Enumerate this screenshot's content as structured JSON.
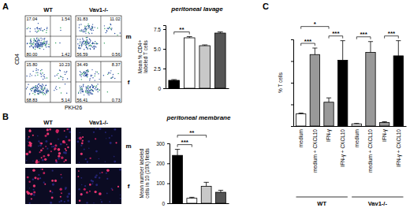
{
  "chart_data": [
    {
      "type": "quadrant",
      "panel": "A",
      "title": "peritoneal lavage",
      "columns": [
        "WT",
        "Vav1-/-"
      ],
      "rows": [
        "m",
        "f"
      ],
      "x_label": "PKH26",
      "y_label": "CD4",
      "plots": [
        {
          "values": [
            17.04,
            1.54,
            80,
            1.42
          ],
          "value_labels": [
            "17.04",
            "1.54",
            "80.00",
            "1.42"
          ]
        },
        {
          "values": [
            31.83,
            11.02,
            56.59,
            0.56
          ],
          "value_labels": [
            "31.83",
            "11.02",
            "56.59",
            "0.56"
          ]
        },
        {
          "values": [
            15.8,
            10.23,
            68.83,
            5.14
          ],
          "value_labels": [
            "15.80",
            "10.23",
            "68.83",
            "5.14"
          ]
        },
        {
          "values": [
            34.49,
            8.37,
            56.41,
            0.73
          ],
          "value_labels": [
            "34.49",
            "8.37",
            "56.41",
            "0.73"
          ]
        }
      ]
    },
    {
      "type": "bar",
      "y_label": "Mean % CD4+ labeled T cells",
      "categories": [
        null,
        null,
        null,
        null
      ],
      "values": [
        1.0,
        6.4,
        5.4,
        7.0
      ],
      "errors": [
        0.1,
        0.15,
        0.1,
        0.15
      ],
      "colors": [
        "#000000",
        "#ffffff",
        "#c8c8c8",
        "#555555"
      ],
      "ylim": [
        0,
        8
      ],
      "yticks": [
        0,
        2.5,
        {
          "value": 5,
          "label": "5.0"
        },
        7.5
      ],
      "tick_labels": "y",
      "annotations": [
        {
          "text": "**",
          "between": [
            0,
            1
          ]
        }
      ]
    },
    {
      "type": "image",
      "panel": "B",
      "title": "peritoneal membrane",
      "columns": [
        "WT",
        "Vav1-/-"
      ],
      "rows": [
        "m",
        "f"
      ]
    },
    {
      "type": "bar",
      "y_label": "Mean number labeled cells in 10 (10X) fields",
      "categories": [
        null,
        null,
        null,
        null
      ],
      "values": [
        240,
        25,
        85,
        55
      ],
      "errors": [
        30,
        5,
        20,
        10
      ],
      "colors": [
        "#000000",
        "#ffffff",
        "#c8c8c8",
        "#555555"
      ],
      "ylim": [
        0,
        300
      ],
      "yticks": [
        0,
        100,
        200,
        300
      ],
      "tick_labels": "y",
      "annotations": [
        {
          "text": "***",
          "between": [
            0,
            1
          ]
        },
        {
          "text": "**",
          "between": [
            0,
            2
          ]
        }
      ]
    },
    {
      "type": "bar",
      "panel": "C",
      "y_label": "% T cells",
      "categories": [
        "medium",
        "medium + CXCL10",
        "IFN-γ",
        "IFN-γ + CXCL10",
        "medium",
        "medium + CXCL10",
        "IFN-γ",
        "IFN-γ + CXCL10"
      ],
      "values": [
        0.28,
        1.65,
        0.55,
        1.52,
        0.05,
        1.7,
        0.08,
        1.62
      ],
      "errors": [
        0.02,
        0.15,
        0.1,
        0.45,
        0.01,
        0.25,
        0.02,
        0.35
      ],
      "colors": [
        "#ffffff",
        "#999999",
        "#999999",
        "#000000",
        "#ffffff",
        "#999999",
        "#999999",
        "#000000"
      ],
      "ylim": [
        0,
        2
      ],
      "yticks": [
        0,
        0.5,
        1,
        1.5,
        2
      ],
      "tick_labels": "x",
      "annotations": [
        {
          "text": "*",
          "between": [
            0,
            2
          ]
        },
        {
          "text": "***",
          "between": [
            0,
            1
          ]
        },
        {
          "text": "***",
          "between": [
            2,
            3
          ]
        },
        {
          "text": "***",
          "between": [
            4,
            5
          ]
        },
        {
          "text": "***",
          "between": [
            6,
            7
          ]
        }
      ],
      "group_labels": [
        {
          "text": "WT",
          "span": [
            0,
            3
          ]
        },
        {
          "text": "Vav1-/-",
          "span": [
            4,
            7
          ]
        }
      ]
    }
  ]
}
